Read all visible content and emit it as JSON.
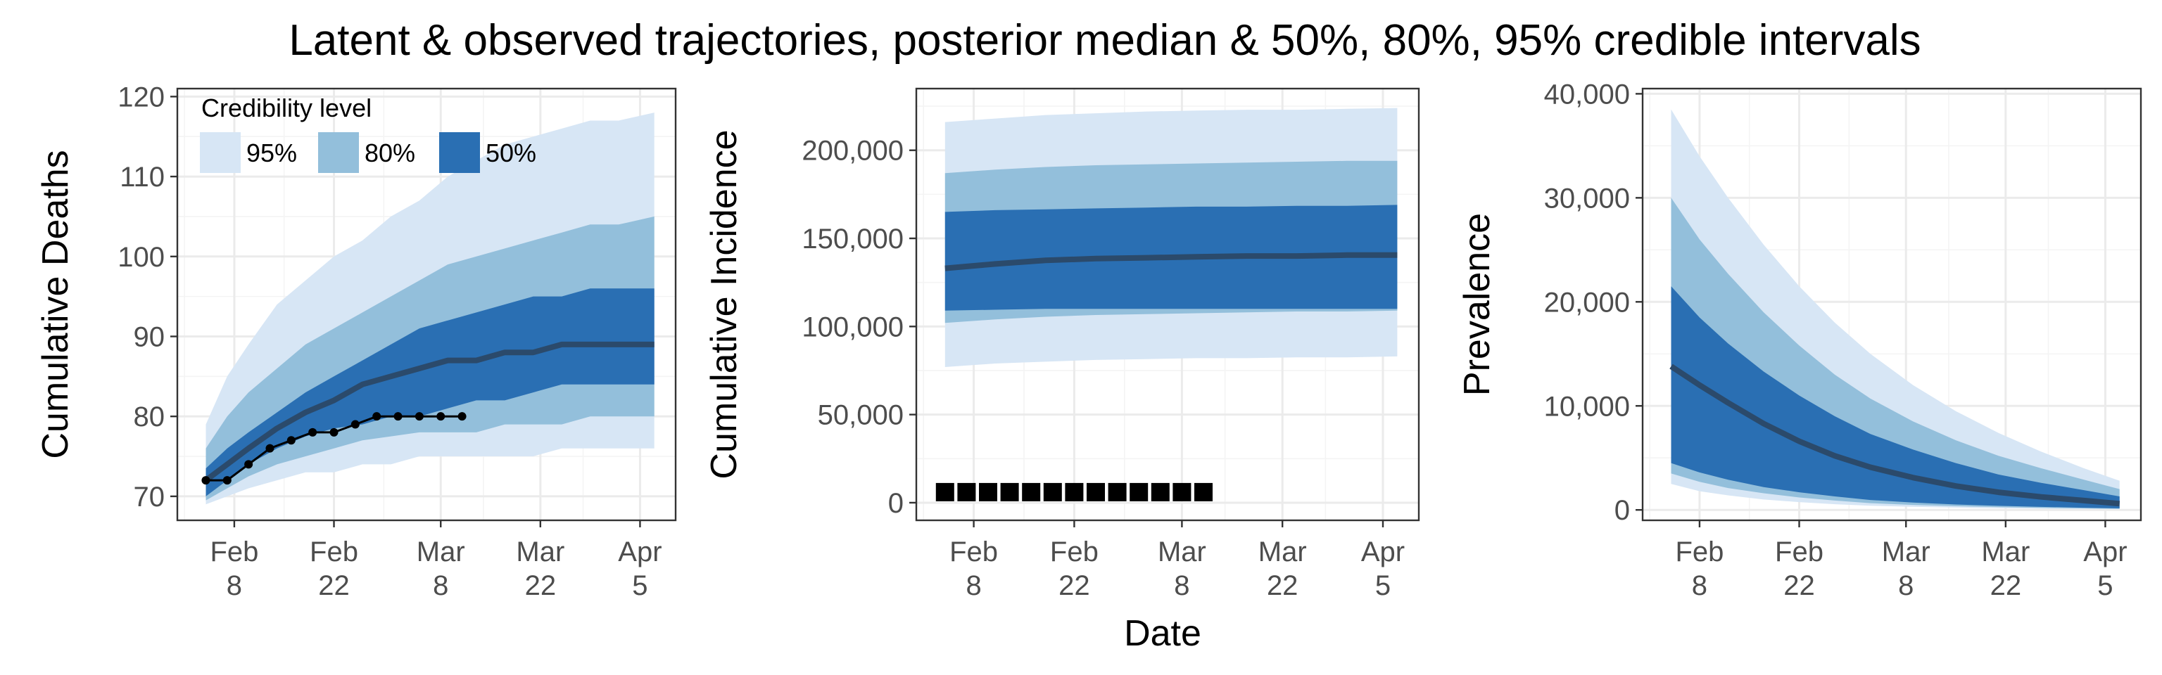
{
  "figure": {
    "title": "Latent & observed trajectories, posterior median & 50%, 80%, 95% credible intervals",
    "shared_xlabel": "Date"
  },
  "legend": {
    "title": "Credibility level",
    "entries": [
      {
        "label": "95%",
        "color": "#d7e6f5"
      },
      {
        "label": "80%",
        "color": "#93bfdb"
      },
      {
        "label": "50%",
        "color": "#2a6fb3"
      }
    ]
  },
  "colors": {
    "band95": "#d7e6f5",
    "band80": "#93bfdb",
    "band50": "#2a6fb3",
    "median": "#2b4a6b",
    "observed": "#000000"
  },
  "chart_data": [
    {
      "type": "area",
      "ylabel": "Cumulative Deaths",
      "xlim": [
        "2020-01-31",
        "2020-04-10"
      ],
      "ylim": [
        67,
        121
      ],
      "xticks": [
        {
          "date": "2020-02-08",
          "label": "Feb\n8"
        },
        {
          "date": "2020-02-22",
          "label": "Feb\n22"
        },
        {
          "date": "2020-03-08",
          "label": "Mar\n8"
        },
        {
          "date": "2020-03-22",
          "label": "Mar\n22"
        },
        {
          "date": "2020-04-05",
          "label": "Apr\n5"
        }
      ],
      "yticks": [
        70,
        80,
        90,
        100,
        110,
        120
      ],
      "legend_position": "top-left",
      "x": [
        "2020-02-04",
        "2020-02-07",
        "2020-02-10",
        "2020-02-14",
        "2020-02-18",
        "2020-02-22",
        "2020-02-26",
        "2020-03-01",
        "2020-03-05",
        "2020-03-09",
        "2020-03-13",
        "2020-03-17",
        "2020-03-21",
        "2020-03-25",
        "2020-03-29",
        "2020-04-02",
        "2020-04-07"
      ],
      "band95": {
        "lower": [
          69,
          70,
          71,
          72,
          73,
          73,
          74,
          74,
          75,
          75,
          75,
          75,
          75,
          76,
          76,
          76,
          76
        ],
        "upper": [
          79,
          85,
          89,
          94,
          97,
          100,
          102,
          105,
          107,
          110,
          112,
          114,
          115,
          116,
          117,
          117,
          118
        ]
      },
      "band80": {
        "lower": [
          69.5,
          71,
          72.5,
          74,
          75,
          76,
          77,
          77.5,
          78,
          78,
          78,
          79,
          79,
          79,
          80,
          80,
          80
        ],
        "upper": [
          76,
          80,
          83,
          86,
          89,
          91,
          93,
          95,
          97,
          99,
          100,
          101,
          102,
          103,
          104,
          104,
          105
        ]
      },
      "band50": {
        "lower": [
          70,
          72,
          74,
          76,
          77.5,
          78.5,
          79,
          80,
          80,
          81,
          82,
          82,
          83,
          84,
          84,
          84,
          84
        ],
        "upper": [
          73.5,
          76,
          78,
          80.5,
          83,
          85,
          87,
          89,
          91,
          92,
          93,
          94,
          95,
          95,
          96,
          96,
          96
        ]
      },
      "median": [
        72,
        74,
        76,
        78.5,
        80.5,
        82,
        84,
        85,
        86,
        87,
        87,
        88,
        88,
        89,
        89,
        89,
        89
      ],
      "observed": {
        "x": [
          "2020-02-04",
          "2020-02-07",
          "2020-02-10",
          "2020-02-13",
          "2020-02-16",
          "2020-02-19",
          "2020-02-22",
          "2020-02-25",
          "2020-02-28",
          "2020-03-02",
          "2020-03-05",
          "2020-03-08",
          "2020-03-11"
        ],
        "y": [
          72,
          72,
          74,
          76,
          77,
          78,
          78,
          79,
          80,
          80,
          80,
          80,
          80
        ]
      }
    },
    {
      "type": "area",
      "ylabel": "Cumulative Incidence",
      "xlabel": "Date",
      "xlim": [
        "2020-01-31",
        "2020-04-10"
      ],
      "ylim": [
        -10000,
        235000
      ],
      "xticks": [
        {
          "date": "2020-02-08",
          "label": "Feb\n8"
        },
        {
          "date": "2020-02-22",
          "label": "Feb\n22"
        },
        {
          "date": "2020-03-08",
          "label": "Mar\n8"
        },
        {
          "date": "2020-03-22",
          "label": "Mar\n22"
        },
        {
          "date": "2020-04-05",
          "label": "Apr\n5"
        }
      ],
      "yticks": [
        0,
        50000,
        100000,
        150000,
        200000
      ],
      "x": [
        "2020-02-04",
        "2020-02-11",
        "2020-02-18",
        "2020-02-25",
        "2020-03-03",
        "2020-03-10",
        "2020-03-17",
        "2020-03-24",
        "2020-03-31",
        "2020-04-07"
      ],
      "band95": {
        "lower": [
          77000,
          79000,
          80000,
          81000,
          81500,
          82000,
          82000,
          82500,
          82500,
          83000
        ],
        "upper": [
          216000,
          218000,
          220000,
          221000,
          222000,
          222500,
          223000,
          223000,
          223500,
          224000
        ]
      },
      "band80": {
        "lower": [
          102000,
          104000,
          105500,
          106500,
          107000,
          107500,
          108000,
          108500,
          108500,
          109000
        ],
        "upper": [
          187000,
          189000,
          190500,
          191500,
          192000,
          192500,
          193000,
          193500,
          194000,
          194000
        ]
      },
      "band50": {
        "lower": [
          109000,
          109500,
          110000,
          110000,
          110000,
          110000,
          110000,
          110000,
          110000,
          110000
        ],
        "upper": [
          165000,
          166000,
          166500,
          167000,
          167500,
          168000,
          168000,
          168500,
          168500,
          169000
        ]
      },
      "median": [
        133000,
        135500,
        137500,
        138500,
        139000,
        139500,
        140000,
        140000,
        140500,
        140500
      ],
      "observed": {
        "x": [
          "2020-02-04",
          "2020-02-07",
          "2020-02-10",
          "2020-02-13",
          "2020-02-16",
          "2020-02-19",
          "2020-02-22",
          "2020-02-25",
          "2020-02-28",
          "2020-03-02",
          "2020-03-05",
          "2020-03-08",
          "2020-03-11"
        ],
        "y": [
          6000,
          6000,
          6000,
          6000,
          6000,
          6000,
          6000,
          6000,
          6000,
          6000,
          6000,
          6000,
          6000
        ]
      }
    },
    {
      "type": "area",
      "ylabel": "Prevalence",
      "xlim": [
        "2020-01-31",
        "2020-04-10"
      ],
      "ylim": [
        -1000,
        40500
      ],
      "xticks": [
        {
          "date": "2020-02-08",
          "label": "Feb\n8"
        },
        {
          "date": "2020-02-22",
          "label": "Feb\n22"
        },
        {
          "date": "2020-03-08",
          "label": "Mar\n8"
        },
        {
          "date": "2020-03-22",
          "label": "Mar\n22"
        },
        {
          "date": "2020-04-05",
          "label": "Apr\n5"
        }
      ],
      "yticks": [
        0,
        10000,
        20000,
        30000,
        40000
      ],
      "x": [
        "2020-02-04",
        "2020-02-08",
        "2020-02-12",
        "2020-02-17",
        "2020-02-22",
        "2020-02-27",
        "2020-03-03",
        "2020-03-09",
        "2020-03-15",
        "2020-03-21",
        "2020-03-27",
        "2020-04-02",
        "2020-04-07"
      ],
      "band95": {
        "lower": [
          2500,
          1800,
          1400,
          1000,
          750,
          550,
          400,
          300,
          220,
          160,
          120,
          90,
          70
        ],
        "upper": [
          38500,
          34000,
          30000,
          25500,
          21500,
          18000,
          15000,
          12000,
          9500,
          7400,
          5600,
          4000,
          2800
        ]
      },
      "band80": {
        "lower": [
          3500,
          2700,
          2100,
          1600,
          1200,
          900,
          650,
          480,
          360,
          270,
          200,
          150,
          110
        ],
        "upper": [
          30000,
          26000,
          22700,
          19000,
          15800,
          13000,
          10700,
          8500,
          6700,
          5200,
          4000,
          2900,
          2000
        ]
      },
      "band50": {
        "lower": [
          4500,
          3600,
          2900,
          2200,
          1700,
          1300,
          950,
          700,
          520,
          390,
          290,
          210,
          150
        ],
        "upper": [
          21500,
          18500,
          16000,
          13300,
          11000,
          9000,
          7300,
          5800,
          4500,
          3400,
          2600,
          1900,
          1300
        ]
      },
      "median": [
        13800,
        12000,
        10300,
        8300,
        6600,
        5200,
        4100,
        3100,
        2300,
        1700,
        1250,
        900,
        600
      ]
    }
  ]
}
